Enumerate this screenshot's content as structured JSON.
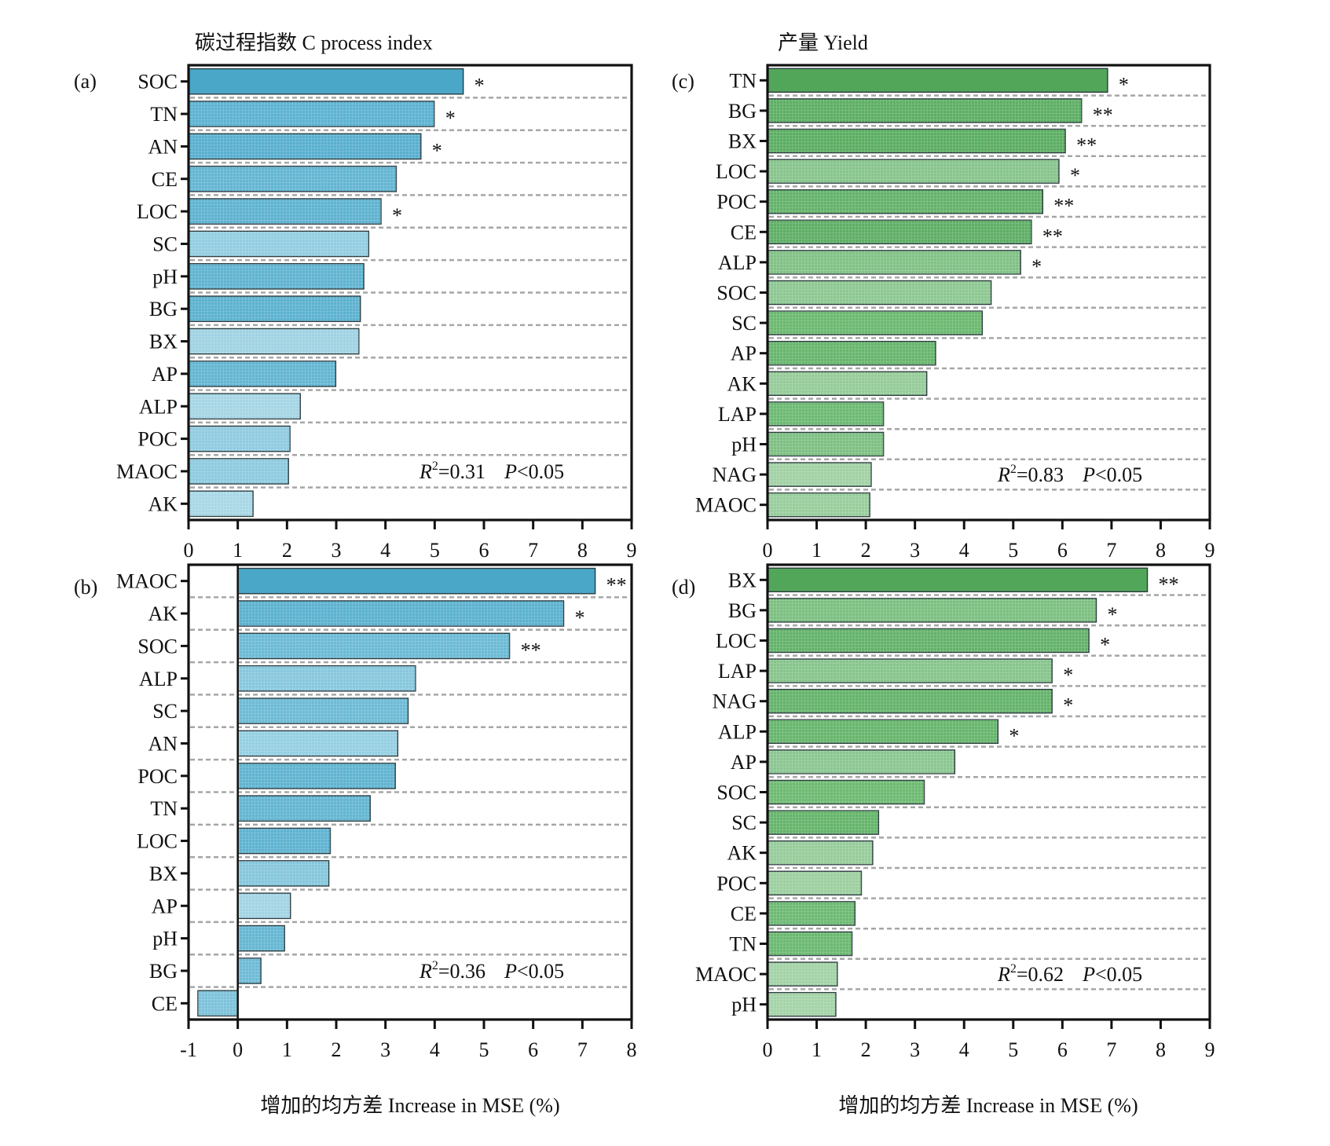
{
  "chart_data": [
    {
      "id": "a",
      "type": "bar",
      "orientation": "horizontal",
      "panel_label": "(a)",
      "title": "碳过程指数 C process index",
      "xlabel": "",
      "xlim": [
        0,
        9
      ],
      "xticks": [
        "0",
        "1",
        "2",
        "3",
        "4",
        "5",
        "6",
        "7",
        "8",
        "9"
      ],
      "categories": [
        "SOC",
        "TN",
        "AN",
        "CE",
        "LOC",
        "SC",
        "pH",
        "BG",
        "BX",
        "AP",
        "ALP",
        "POC",
        "MAOC",
        "AK"
      ],
      "values": [
        5.58,
        4.99,
        4.72,
        4.22,
        3.91,
        3.66,
        3.56,
        3.49,
        3.46,
        2.99,
        2.27,
        2.06,
        2.03,
        1.31
      ],
      "significance": [
        "*",
        "*",
        "*",
        "",
        "*",
        "",
        "",
        "",
        "",
        "",
        "",
        "",
        "",
        ""
      ],
      "colors": [
        "#4aa7c8",
        "#5bb2d1",
        "#57afcf",
        "#62b5d2",
        "#5db2d0",
        "#92cde1",
        "#5fb3d0",
        "#5bb1cf",
        "#9fd2e2",
        "#62b5d2",
        "#a5d5e4",
        "#8fcbe0",
        "#8ccadf",
        "#a7d7e6"
      ],
      "annotation": {
        "r2_label": "R",
        "r2_value": "=0.31",
        "p_label": "P",
        "p_value": "<0.05"
      }
    },
    {
      "id": "b",
      "type": "bar",
      "orientation": "horizontal",
      "panel_label": "(b)",
      "title": "",
      "xlabel": "增加的均方差 Increase in MSE (%)",
      "xlim": [
        -1,
        8
      ],
      "xticks": [
        "-1",
        "0",
        "1",
        "2",
        "3",
        "4",
        "5",
        "6",
        "7",
        "8"
      ],
      "categories": [
        "MAOC",
        "AK",
        "SOC",
        "ALP",
        "SC",
        "AN",
        "POC",
        "TN",
        "LOC",
        "BX",
        "AP",
        "pH",
        "BG",
        "CE"
      ],
      "values": [
        7.26,
        6.62,
        5.52,
        3.61,
        3.46,
        3.25,
        3.2,
        2.69,
        1.88,
        1.85,
        1.07,
        0.95,
        0.47,
        -0.81
      ],
      "significance": [
        "**",
        "*",
        "**",
        "",
        "",
        "",
        "",
        "",
        "",
        "",
        "",
        "",
        "",
        ""
      ],
      "colors": [
        "#4aa7c8",
        "#5ab1cf",
        "#6bbad5",
        "#86c7dd",
        "#6cbad5",
        "#94cfe2",
        "#5fb3d0",
        "#62b5d2",
        "#5db2d0",
        "#85c6dc",
        "#a2d4e4",
        "#64b6d2",
        "#6dbad6",
        "#7cc2da"
      ],
      "annotation": {
        "r2_label": "R",
        "r2_value": "=0.36",
        "p_label": "P",
        "p_value": "<0.05"
      }
    },
    {
      "id": "c",
      "type": "bar",
      "orientation": "horizontal",
      "panel_label": "(c)",
      "title": "产量 Yield",
      "xlabel": "",
      "xlim": [
        0,
        9
      ],
      "xticks": [
        "0",
        "1",
        "2",
        "3",
        "4",
        "5",
        "6",
        "7",
        "8",
        "9"
      ],
      "categories": [
        "TN",
        "BG",
        "BX",
        "LOC",
        "POC",
        "CE",
        "ALP",
        "SOC",
        "SC",
        "AP",
        "AK",
        "LAP",
        "pH",
        "NAG",
        "MAOC"
      ],
      "values": [
        6.92,
        6.39,
        6.06,
        5.93,
        5.6,
        5.37,
        5.15,
        4.55,
        4.37,
        3.42,
        3.24,
        2.36,
        2.36,
        2.11,
        2.08
      ],
      "significance": [
        "*",
        "**",
        "**",
        "*",
        "**",
        "**",
        "*",
        "",
        "",
        "",
        "",
        "",
        "",
        "",
        ""
      ],
      "colors": [
        "#52a65a",
        "#5cae63",
        "#5aad61",
        "#86c48b",
        "#62b269",
        "#5dae64",
        "#80c185",
        "#8cc791",
        "#6ab86f",
        "#66b56c",
        "#94cb98",
        "#6cb972",
        "#7dbf82",
        "#a0d1a3",
        "#98cd9c"
      ],
      "annotation": {
        "r2_label": "R",
        "r2_value": "=0.83",
        "p_label": "P",
        "p_value": "<0.05"
      }
    },
    {
      "id": "d",
      "type": "bar",
      "orientation": "horizontal",
      "panel_label": "(d)",
      "title": "",
      "xlabel": "增加的均方差 Increase in MSE (%)",
      "xlim": [
        0,
        9
      ],
      "xticks": [
        "0",
        "1",
        "2",
        "3",
        "4",
        "5",
        "6",
        "7",
        "8",
        "9"
      ],
      "categories": [
        "BX",
        "BG",
        "LOC",
        "LAP",
        "NAG",
        "ALP",
        "AP",
        "SOC",
        "SC",
        "AK",
        "POC",
        "CE",
        "TN",
        "MAOC",
        "pH"
      ],
      "values": [
        7.73,
        6.69,
        6.54,
        5.79,
        5.79,
        4.69,
        3.81,
        3.19,
        2.26,
        2.14,
        1.91,
        1.78,
        1.72,
        1.42,
        1.39
      ],
      "significance": [
        "**",
        "*",
        "*",
        "*",
        "*",
        "*",
        "",
        "",
        "",
        "",
        "",
        "",
        "",
        "",
        ""
      ],
      "colors": [
        "#52a65a",
        "#7bbf80",
        "#62b269",
        "#86c48b",
        "#63b36a",
        "#66b56c",
        "#8ac690",
        "#6db971",
        "#64b46a",
        "#96cc9a",
        "#9ccf9f",
        "#6cb972",
        "#6ab870",
        "#a2d2a5",
        "#a4d3a7"
      ],
      "annotation": {
        "r2_label": "R",
        "r2_value": "=0.62",
        "p_label": "P",
        "p_value": "<0.05"
      }
    }
  ]
}
